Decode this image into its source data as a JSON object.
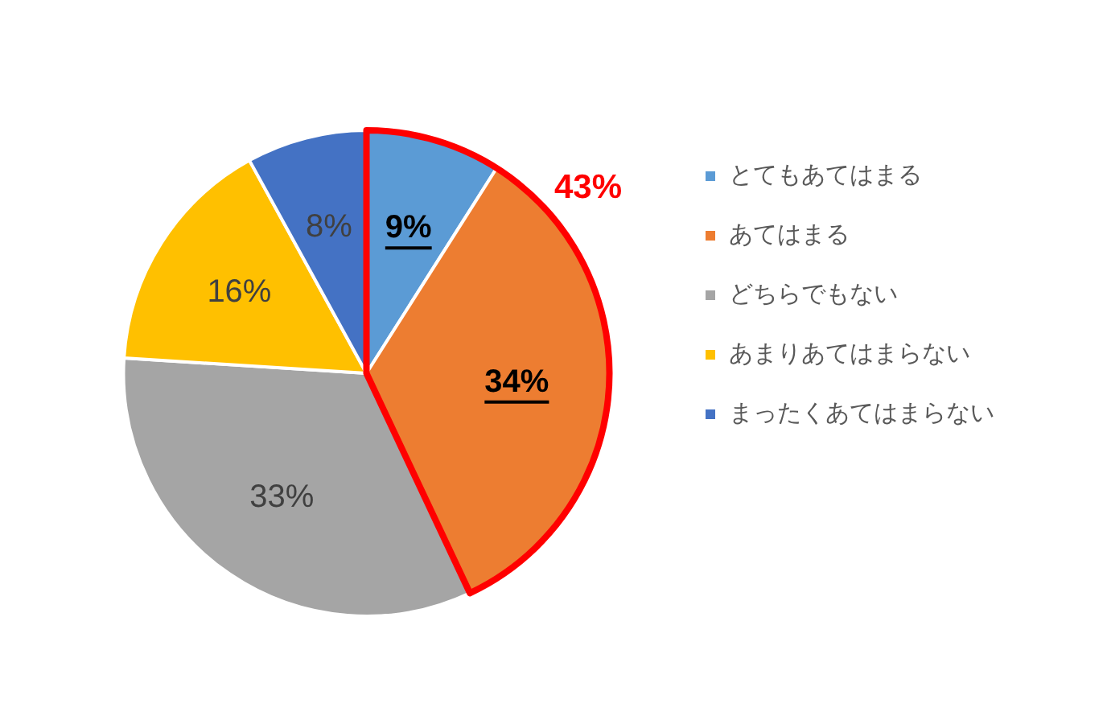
{
  "chart_data": {
    "type": "pie",
    "categories": [
      "とてもあてはまる",
      "あてはまる",
      "どちらでもない",
      "あまりあてはまらない",
      "まったくあてはまらない"
    ],
    "values": [
      9,
      34,
      33,
      16,
      8
    ],
    "colors": [
      "#5b9bd5",
      "#ed7d31",
      "#a5a5a5",
      "#ffc000",
      "#4472c4"
    ],
    "value_labels": [
      "9%",
      "34%",
      "33%",
      "16%",
      "8%"
    ],
    "annotations": [
      "43%"
    ],
    "legend": "right"
  }
}
